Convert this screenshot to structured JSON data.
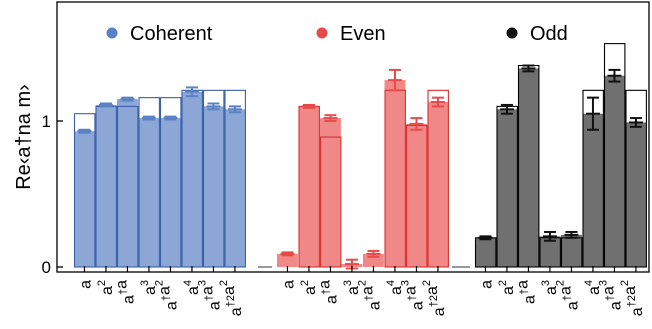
{
  "chart_data": {
    "type": "bar",
    "ylabel": "Re‹a†na m›",
    "ylim": [
      0,
      1.75
    ],
    "yticks": [
      0,
      1
    ],
    "categories": [
      "a",
      "a2",
      "a†a",
      "a3",
      "a†a2",
      "a4",
      "a†a3",
      "a†2a2"
    ],
    "groups": [
      {
        "name": "Coherent",
        "color": "#5b82c4",
        "measured": [
          0.93,
          1.11,
          1.15,
          1.02,
          1.02,
          1.2,
          1.1,
          1.08
        ],
        "errors": [
          0.01,
          0.01,
          0.01,
          0.01,
          0.01,
          0.03,
          0.02,
          0.02
        ],
        "ideal": [
          1.05,
          1.1,
          1.1,
          1.16,
          1.16,
          1.21,
          1.21,
          1.21
        ]
      },
      {
        "name": "Even",
        "color": "#e84a4a",
        "measured": [
          0.09,
          1.1,
          1.02,
          0.02,
          0.09,
          1.28,
          0.98,
          1.13
        ],
        "errors": [
          0.01,
          0.01,
          0.02,
          0.03,
          0.02,
          0.07,
          0.04,
          0.03
        ],
        "ideal": [
          0.0,
          1.1,
          0.89,
          0.0,
          0.0,
          1.21,
          0.97,
          1.21
        ]
      },
      {
        "name": "Odd",
        "color": "#111111",
        "measured": [
          0.2,
          1.08,
          1.36,
          0.21,
          0.22,
          1.05,
          1.31,
          0.99
        ],
        "errors": [
          0.01,
          0.03,
          0.02,
          0.03,
          0.02,
          0.11,
          0.04,
          0.03
        ],
        "ideal": [
          0.2,
          1.1,
          1.38,
          0.2,
          0.2,
          1.21,
          1.53,
          1.21
        ]
      }
    ],
    "legend": [
      "Coherent",
      "Even",
      "Odd"
    ],
    "grid": false,
    "legend_placement": "top"
  }
}
